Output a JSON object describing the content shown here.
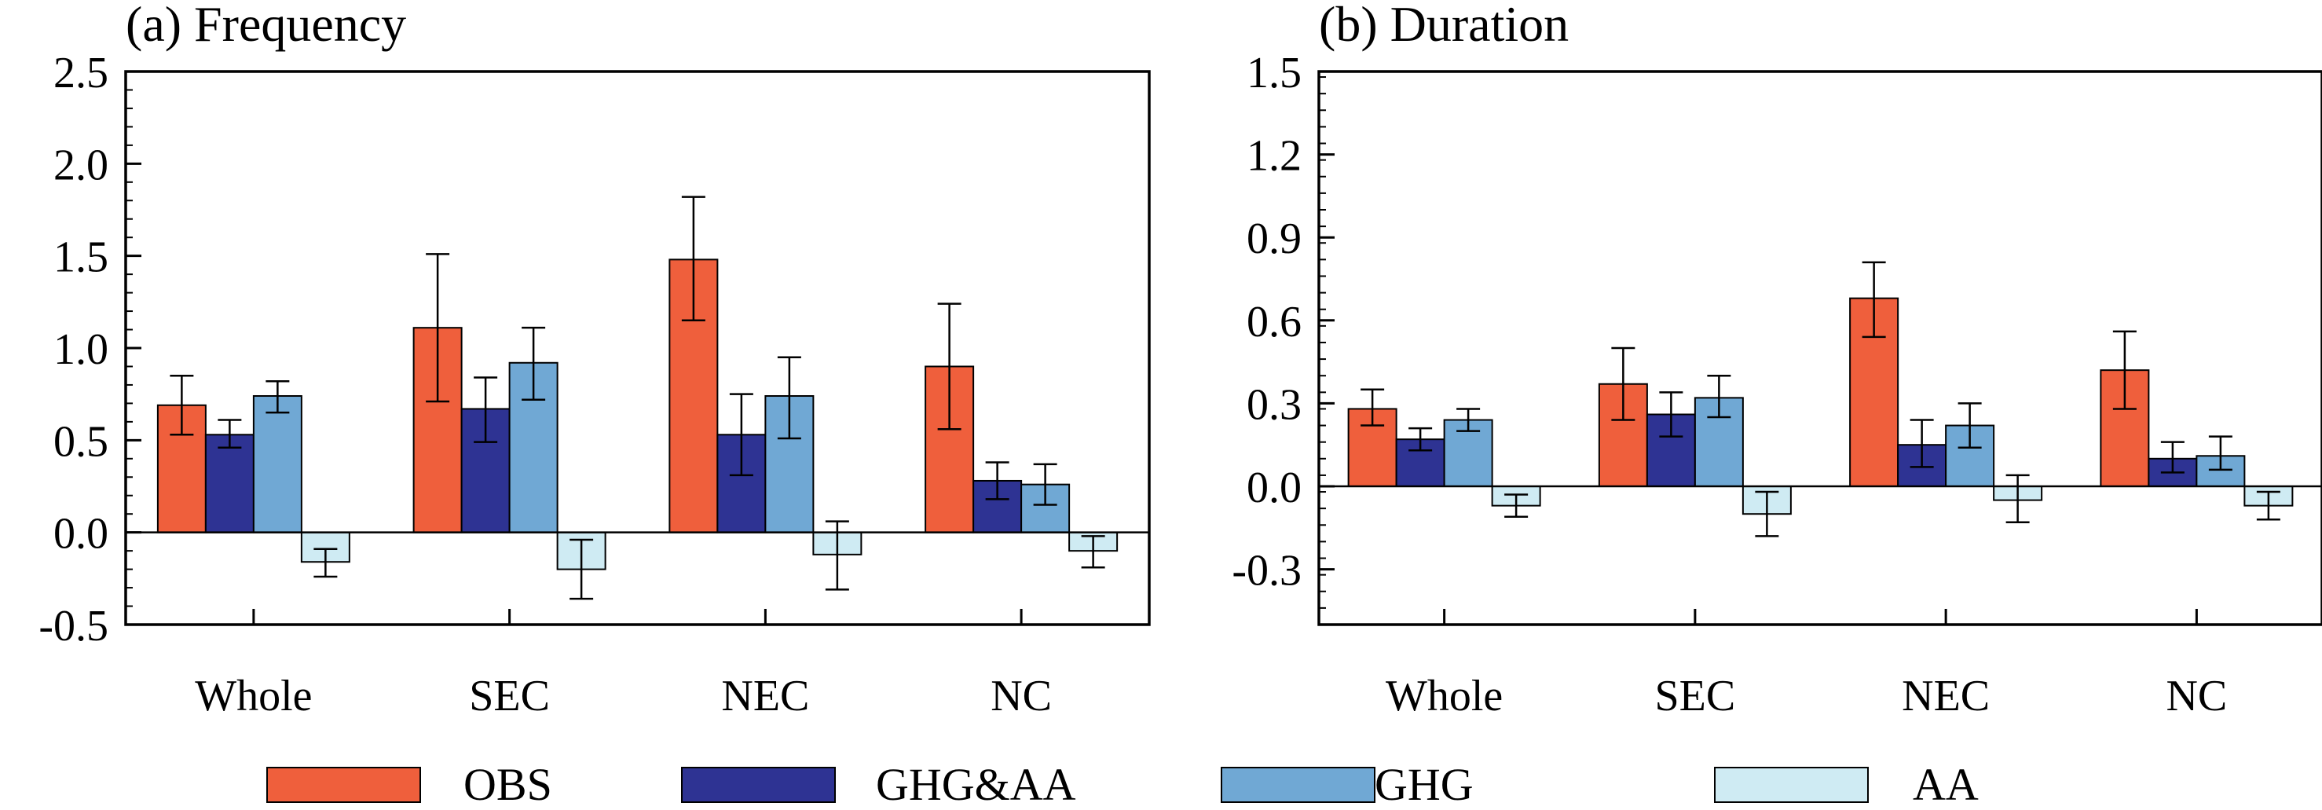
{
  "chart_data": [
    {
      "type": "bar",
      "title": "(a) Frequency",
      "xlabel": "",
      "ylabel": "",
      "categories": [
        "Whole",
        "SEC",
        "NEC",
        "NC"
      ],
      "ylim": [
        -0.5,
        2.5
      ],
      "yticks": [
        "-0.5",
        "0.0",
        "0.5",
        "1.0",
        "1.5",
        "2.0",
        "2.5"
      ],
      "ytick_values": [
        -0.5,
        0.0,
        0.5,
        1.0,
        1.5,
        2.0,
        2.5
      ],
      "grid": false,
      "zero_line": true,
      "series": [
        {
          "name": "OBS",
          "values": [
            0.69,
            1.11,
            1.48,
            0.9
          ],
          "err_low": [
            0.53,
            0.71,
            1.15,
            0.56
          ],
          "err_high": [
            0.85,
            1.51,
            1.82,
            1.24
          ]
        },
        {
          "name": "GHG&AA",
          "values": [
            0.53,
            0.67,
            0.53,
            0.28
          ],
          "err_low": [
            0.46,
            0.49,
            0.31,
            0.18
          ],
          "err_high": [
            0.61,
            0.84,
            0.75,
            0.38
          ]
        },
        {
          "name": "GHG",
          "values": [
            0.74,
            0.92,
            0.74,
            0.26
          ],
          "err_low": [
            0.65,
            0.72,
            0.51,
            0.15
          ],
          "err_high": [
            0.82,
            1.11,
            0.95,
            0.37
          ]
        },
        {
          "name": "AA",
          "values": [
            -0.16,
            -0.2,
            -0.12,
            -0.1
          ],
          "err_low": [
            -0.24,
            -0.36,
            -0.31,
            -0.19
          ],
          "err_high": [
            -0.09,
            -0.04,
            0.06,
            -0.02
          ]
        }
      ]
    },
    {
      "type": "bar",
      "title": "(b) Duration",
      "xlabel": "",
      "ylabel": "",
      "categories": [
        "Whole",
        "SEC",
        "NEC",
        "NC"
      ],
      "ylim": [
        -0.5,
        1.5
      ],
      "yticks": [
        "-0.3",
        "0.0",
        "0.3",
        "0.6",
        "0.9",
        "1.2",
        "1.5"
      ],
      "ytick_values": [
        -0.3,
        0.0,
        0.3,
        0.6,
        0.9,
        1.2,
        1.5
      ],
      "grid": false,
      "zero_line": true,
      "series": [
        {
          "name": "OBS",
          "values": [
            0.28,
            0.37,
            0.68,
            0.42
          ],
          "err_low": [
            0.22,
            0.24,
            0.54,
            0.28
          ],
          "err_high": [
            0.35,
            0.5,
            0.81,
            0.56
          ]
        },
        {
          "name": "GHG&AA",
          "values": [
            0.17,
            0.26,
            0.15,
            0.1
          ],
          "err_low": [
            0.13,
            0.18,
            0.07,
            0.05
          ],
          "err_high": [
            0.21,
            0.34,
            0.24,
            0.16
          ]
        },
        {
          "name": "GHG",
          "values": [
            0.24,
            0.32,
            0.22,
            0.11
          ],
          "err_low": [
            0.2,
            0.25,
            0.14,
            0.06
          ],
          "err_high": [
            0.28,
            0.4,
            0.3,
            0.18
          ]
        },
        {
          "name": "AA",
          "values": [
            -0.07,
            -0.1,
            -0.05,
            -0.07
          ],
          "err_low": [
            -0.11,
            -0.18,
            -0.13,
            -0.12
          ],
          "err_high": [
            -0.03,
            -0.02,
            0.04,
            -0.02
          ]
        }
      ]
    }
  ],
  "legend": {
    "placement": "bottom",
    "items": [
      {
        "label": "OBS",
        "color": "#ef5f3c"
      },
      {
        "label": "GHG&AA",
        "color": "#2e3393"
      },
      {
        "label": "GHG",
        "color": "#70a8d4"
      },
      {
        "label": "AA",
        "color": "#cfebf3"
      }
    ]
  }
}
